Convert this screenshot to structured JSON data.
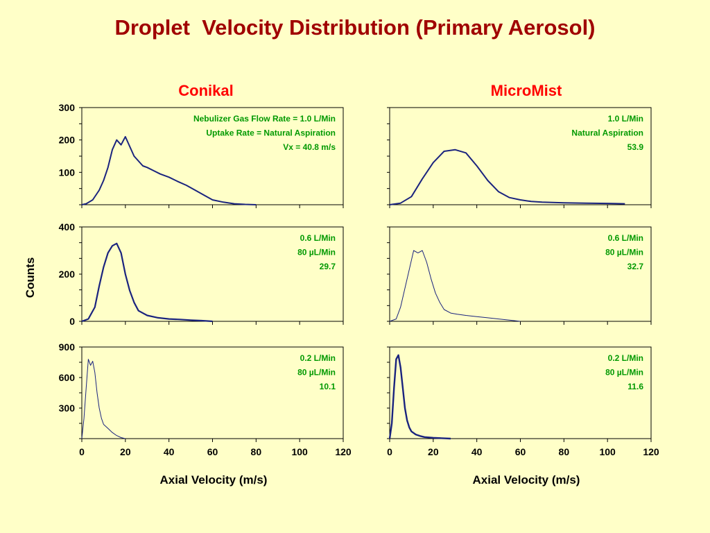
{
  "title": "Droplet  Velocity Distribution (Primary Aerosol)",
  "columns": {
    "left": "Conikal",
    "right": "MicroMist"
  },
  "y_axis_label": "Counts",
  "x_axis_label_left": "Axial Velocity (m/s)",
  "x_axis_label_right": "Axial Velocity (m/s)",
  "colors": {
    "background": "#FFFFC8",
    "title": "#A00000",
    "column_heading": "#FF0000",
    "series": "#1A237E",
    "annotation": "#009900"
  },
  "chart_data": [
    {
      "type": "line",
      "panel": "Conikal row 1",
      "ylim": [
        0,
        300
      ],
      "yticks": [
        "300",
        "200",
        "100"
      ],
      "xlim": [
        0,
        120
      ],
      "annotations": [
        "Nebulizer Gas Flow Rate = 1.0 L/Min",
        "Uptake Rate = Natural Aspiration",
        "Vx = 40.8 m/s"
      ],
      "x": [
        0,
        2,
        5,
        8,
        10,
        12,
        14,
        16,
        18,
        20,
        22,
        24,
        26,
        28,
        30,
        33,
        36,
        40,
        44,
        48,
        52,
        56,
        60,
        65,
        70,
        75,
        80
      ],
      "values": [
        0,
        3,
        15,
        45,
        75,
        115,
        170,
        200,
        185,
        210,
        180,
        150,
        135,
        120,
        115,
        105,
        95,
        85,
        72,
        60,
        45,
        30,
        15,
        8,
        3,
        1,
        0
      ]
    },
    {
      "type": "line",
      "panel": "MicroMist row 1",
      "ylim": [
        0,
        300
      ],
      "yticks": [],
      "xlim": [
        0,
        120
      ],
      "annotations": [
        "1.0 L/Min",
        "Natural Aspiration",
        "53.9"
      ],
      "x": [
        0,
        5,
        10,
        15,
        20,
        25,
        30,
        35,
        40,
        45,
        50,
        55,
        60,
        65,
        70,
        80,
        90,
        100,
        108
      ],
      "values": [
        0,
        5,
        25,
        80,
        130,
        165,
        170,
        160,
        120,
        75,
        40,
        22,
        15,
        10,
        8,
        6,
        5,
        4,
        3
      ]
    },
    {
      "type": "line",
      "panel": "Conikal row 2",
      "ylim": [
        0,
        400
      ],
      "yticks": [
        "400",
        "200",
        "0"
      ],
      "xlim": [
        0,
        120
      ],
      "annotations": [
        "0.6 L/Min",
        "80 µL/Min",
        "29.7"
      ],
      "x": [
        0,
        3,
        6,
        8,
        10,
        12,
        14,
        16,
        18,
        20,
        22,
        24,
        26,
        30,
        35,
        40,
        45,
        50,
        55,
        60
      ],
      "values": [
        0,
        10,
        60,
        150,
        230,
        290,
        320,
        330,
        290,
        200,
        130,
        80,
        45,
        25,
        15,
        10,
        8,
        5,
        3,
        0
      ]
    },
    {
      "type": "line",
      "panel": "MicroMist row 2",
      "ylim": [
        0,
        400
      ],
      "yticks": [],
      "xlim": [
        0,
        120
      ],
      "annotations": [
        "0.6 L/Min",
        "80 µL/Min",
        "32.7"
      ],
      "x": [
        0,
        3,
        5,
        7,
        9,
        11,
        13,
        15,
        17,
        19,
        21,
        23,
        25,
        28,
        31,
        35,
        40,
        45,
        50,
        55,
        60
      ],
      "values": [
        0,
        10,
        60,
        140,
        220,
        300,
        290,
        300,
        250,
        180,
        120,
        80,
        50,
        35,
        30,
        25,
        20,
        15,
        10,
        5,
        0
      ]
    },
    {
      "type": "line",
      "panel": "Conikal row 3",
      "ylim": [
        0,
        900
      ],
      "yticks": [
        "900",
        "600",
        "300"
      ],
      "xlim": [
        0,
        120
      ],
      "xticks": [
        "0",
        "20",
        "40",
        "60",
        "80",
        "100",
        "120"
      ],
      "annotations": [
        "0.2 L/Min",
        "80 µL/Min",
        "10.1"
      ],
      "x": [
        0,
        1,
        2,
        3,
        4,
        5,
        6,
        7,
        8,
        9,
        10,
        12,
        14,
        16,
        18,
        20
      ],
      "values": [
        0,
        200,
        500,
        780,
        720,
        760,
        650,
        450,
        300,
        200,
        140,
        100,
        60,
        30,
        10,
        0
      ]
    },
    {
      "type": "line",
      "panel": "MicroMist row 3",
      "ylim": [
        0,
        900
      ],
      "yticks": [],
      "xlim": [
        0,
        120
      ],
      "xticks": [
        "0",
        "20",
        "40",
        "60",
        "80",
        "100",
        "120"
      ],
      "annotations": [
        "0.2 L/Min",
        "80 µL/Min",
        "11.6"
      ],
      "x": [
        0,
        1,
        2,
        3,
        4,
        5,
        6,
        7,
        8,
        9,
        10,
        12,
        14,
        16,
        20,
        25,
        28
      ],
      "values": [
        0,
        150,
        500,
        780,
        820,
        700,
        500,
        300,
        180,
        110,
        70,
        40,
        25,
        15,
        8,
        3,
        0
      ]
    }
  ]
}
